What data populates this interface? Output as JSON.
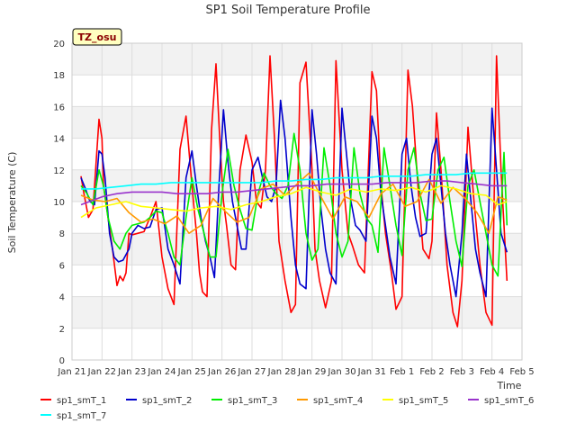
{
  "chart_data": {
    "type": "line",
    "title": "SP1 Soil Temperature Profile",
    "xlabel": "Time",
    "ylabel": "Soil Temperature (C)",
    "badge": "TZ_osu",
    "ylim": [
      0,
      20
    ],
    "yticks": [
      0,
      2,
      4,
      6,
      8,
      10,
      12,
      14,
      16,
      18,
      20
    ],
    "xlim": [
      0,
      15
    ],
    "xtick_labels": [
      "Jan 21",
      "Jan 22",
      "Jan 23",
      "Jan 24",
      "Jan 25",
      "Jan 26",
      "Jan 27",
      "Jan 28",
      "Jan 29",
      "Jan 30",
      "Jan 31",
      "Feb 1",
      "Feb 2",
      "Feb 3",
      "Feb 4",
      "Feb 5"
    ],
    "grid": true,
    "legend_position": "bottom",
    "series": [
      {
        "name": "sp1_smT_1",
        "color": "#ff0000",
        "x": [
          0.3,
          0.4,
          0.55,
          0.7,
          0.9,
          1.0,
          1.05,
          1.2,
          1.35,
          1.5,
          1.6,
          1.7,
          1.8,
          1.9,
          2.0,
          2.2,
          2.4,
          2.6,
          2.8,
          3.0,
          3.2,
          3.4,
          3.6,
          3.8,
          4.0,
          4.15,
          4.25,
          4.35,
          4.5,
          4.65,
          4.8,
          4.95,
          5.05,
          5.15,
          5.3,
          5.45,
          5.6,
          5.8,
          6.0,
          6.15,
          6.3,
          6.45,
          6.6,
          6.75,
          6.9,
          7.1,
          7.3,
          7.45,
          7.6,
          7.8,
          8.0,
          8.1,
          8.25,
          8.45,
          8.65,
          8.8,
          9.0,
          9.2,
          9.35,
          9.55,
          9.75,
          10.0,
          10.15,
          10.3,
          10.45,
          10.65,
          10.8,
          11.0,
          11.2,
          11.35,
          11.55,
          11.7,
          11.9,
          12.0,
          12.15,
          12.3,
          12.5,
          12.7,
          12.85,
          13.0,
          13.2,
          13.4,
          13.6,
          13.8,
          14.0,
          14.15,
          14.3,
          14.5
        ],
        "values": [
          11.6,
          10.5,
          9.0,
          9.5,
          15.2,
          14.0,
          11.0,
          9.0,
          7.0,
          4.7,
          5.3,
          5.0,
          5.5,
          8.0,
          7.9,
          8.0,
          8.1,
          9.0,
          10.0,
          6.5,
          4.5,
          3.5,
          13.3,
          15.4,
          11.0,
          8.0,
          5.5,
          4.3,
          4.0,
          14.5,
          18.7,
          13.0,
          10.0,
          8.5,
          6.0,
          5.7,
          12.0,
          14.2,
          12.5,
          10.0,
          9.6,
          12.0,
          19.2,
          14.0,
          7.5,
          5.0,
          3.0,
          3.5,
          17.5,
          18.8,
          12.0,
          7.0,
          5.0,
          3.3,
          5.0,
          18.9,
          12.0,
          8.0,
          7.2,
          6.0,
          5.5,
          18.2,
          17.0,
          11.0,
          8.0,
          5.5,
          3.2,
          4.0,
          18.3,
          16.0,
          10.5,
          7.0,
          6.4,
          7.5,
          15.6,
          12.0,
          6.0,
          3.0,
          2.1,
          5.0,
          14.7,
          10.0,
          6.0,
          3.0,
          2.2,
          19.2,
          12.0,
          5.0
        ]
      },
      {
        "name": "sp1_smT_2",
        "color": "#0000cc",
        "x": [
          0.3,
          0.45,
          0.6,
          0.75,
          0.9,
          1.0,
          1.1,
          1.25,
          1.4,
          1.55,
          1.7,
          1.9,
          2.0,
          2.2,
          2.4,
          2.6,
          2.8,
          3.0,
          3.2,
          3.4,
          3.6,
          3.8,
          4.0,
          4.15,
          4.3,
          4.45,
          4.6,
          4.75,
          4.9,
          5.05,
          5.2,
          5.35,
          5.5,
          5.65,
          5.8,
          6.0,
          6.2,
          6.35,
          6.5,
          6.65,
          6.8,
          6.95,
          7.1,
          7.3,
          7.45,
          7.6,
          7.8,
          8.0,
          8.15,
          8.3,
          8.45,
          8.6,
          8.8,
          9.0,
          9.15,
          9.3,
          9.45,
          9.6,
          9.8,
          10.0,
          10.15,
          10.3,
          10.45,
          10.6,
          10.8,
          11.0,
          11.15,
          11.3,
          11.45,
          11.6,
          11.8,
          12.0,
          12.15,
          12.3,
          12.45,
          12.6,
          12.8,
          13.0,
          13.15,
          13.3,
          13.45,
          13.6,
          13.8,
          14.0,
          14.15,
          14.3,
          14.5
        ],
        "values": [
          11.5,
          10.8,
          10.0,
          9.8,
          13.2,
          13.0,
          11.5,
          8.0,
          6.5,
          6.2,
          6.3,
          7.0,
          8.0,
          8.5,
          8.3,
          8.4,
          9.5,
          9.6,
          7.0,
          6.0,
          4.8,
          11.5,
          13.2,
          11.0,
          9.0,
          7.5,
          6.5,
          5.2,
          11.0,
          15.8,
          12.5,
          10.0,
          8.5,
          7.0,
          7.0,
          12.0,
          12.8,
          11.5,
          10.3,
          10.0,
          11.0,
          16.4,
          14.0,
          9.0,
          6.0,
          4.8,
          4.5,
          15.8,
          13.0,
          9.5,
          7.0,
          5.5,
          4.8,
          15.9,
          13.0,
          10.0,
          8.5,
          8.2,
          7.5,
          15.4,
          14.0,
          10.5,
          8.5,
          6.5,
          4.8,
          13.0,
          14.0,
          11.0,
          9.0,
          7.8,
          8.0,
          13.0,
          14.0,
          11.0,
          8.0,
          6.0,
          4.0,
          8.0,
          13.0,
          10.0,
          7.0,
          5.5,
          4.0,
          15.9,
          12.0,
          8.0,
          6.8
        ]
      },
      {
        "name": "sp1_smT_3",
        "color": "#00ee00",
        "x": [
          0.3,
          0.5,
          0.7,
          0.9,
          1.05,
          1.2,
          1.4,
          1.6,
          1.8,
          2.0,
          2.2,
          2.4,
          2.6,
          2.8,
          3.0,
          3.2,
          3.4,
          3.6,
          3.8,
          4.0,
          4.2,
          4.4,
          4.6,
          4.8,
          5.0,
          5.2,
          5.4,
          5.6,
          5.8,
          6.0,
          6.2,
          6.4,
          6.6,
          6.8,
          7.0,
          7.2,
          7.4,
          7.6,
          7.8,
          8.0,
          8.2,
          8.4,
          8.6,
          8.8,
          9.0,
          9.2,
          9.4,
          9.6,
          9.8,
          10.0,
          10.2,
          10.4,
          10.6,
          10.8,
          11.0,
          11.2,
          11.4,
          11.6,
          11.8,
          12.0,
          12.2,
          12.4,
          12.6,
          12.8,
          13.0,
          13.2,
          13.4,
          13.6,
          13.8,
          14.0,
          14.2,
          14.4,
          14.5
        ],
        "values": [
          11.0,
          10.5,
          9.8,
          12.0,
          11.0,
          9.0,
          7.5,
          7.0,
          8.0,
          8.5,
          8.6,
          8.7,
          9.0,
          9.4,
          9.3,
          8.0,
          6.5,
          6.0,
          9.0,
          11.5,
          9.5,
          8.0,
          6.5,
          6.5,
          10.5,
          13.3,
          11.0,
          9.5,
          8.3,
          8.2,
          10.5,
          11.8,
          11.0,
          10.5,
          10.2,
          11.0,
          14.3,
          12.0,
          8.0,
          6.3,
          7.0,
          13.4,
          11.0,
          8.0,
          6.5,
          7.5,
          13.4,
          10.5,
          9.0,
          8.5,
          6.8,
          13.4,
          11.0,
          8.5,
          6.6,
          12.0,
          13.4,
          10.5,
          8.8,
          8.9,
          12.0,
          12.8,
          10.0,
          7.5,
          5.9,
          11.0,
          12.0,
          10.0,
          8.0,
          6.0,
          5.3,
          13.1,
          8.5
        ]
      },
      {
        "name": "sp1_smT_4",
        "color": "#ff9900",
        "x": [
          0.3,
          0.7,
          1.1,
          1.5,
          1.9,
          2.3,
          2.7,
          3.1,
          3.5,
          3.9,
          4.3,
          4.7,
          5.1,
          5.5,
          5.9,
          6.3,
          6.7,
          7.1,
          7.5,
          7.9,
          8.3,
          8.7,
          9.1,
          9.5,
          9.9,
          10.3,
          10.7,
          11.1,
          11.5,
          11.9,
          12.3,
          12.7,
          13.1,
          13.5,
          13.9,
          14.2,
          14.5
        ],
        "values": [
          10.4,
          10.1,
          10.0,
          10.2,
          9.3,
          8.7,
          8.9,
          8.6,
          9.1,
          8.0,
          8.5,
          10.2,
          9.4,
          8.7,
          9.0,
          10.8,
          11.1,
          10.4,
          11.1,
          11.8,
          10.3,
          8.9,
          10.3,
          10.0,
          9.0,
          10.5,
          11.1,
          9.7,
          10.0,
          11.4,
          9.9,
          10.9,
          10.2,
          9.3,
          8.0,
          10.3,
          10.1
        ]
      },
      {
        "name": "sp1_smT_5",
        "color": "#ffff00",
        "x": [
          0.3,
          0.8,
          1.3,
          1.8,
          2.3,
          2.8,
          3.3,
          3.8,
          4.3,
          4.8,
          5.3,
          5.8,
          6.3,
          6.8,
          7.3,
          7.8,
          8.3,
          8.8,
          9.3,
          9.8,
          10.3,
          10.8,
          11.3,
          11.8,
          12.3,
          12.8,
          13.3,
          13.8,
          14.2,
          14.5
        ],
        "values": [
          9.0,
          9.6,
          9.8,
          10.0,
          9.7,
          9.6,
          9.5,
          9.4,
          9.6,
          9.7,
          9.5,
          9.8,
          10.0,
          10.3,
          10.5,
          10.9,
          10.6,
          10.4,
          10.8,
          10.6,
          10.8,
          10.7,
          10.9,
          10.6,
          11.0,
          10.8,
          10.5,
          10.4,
          9.8,
          10.0
        ]
      },
      {
        "name": "sp1_smT_6",
        "color": "#9933cc",
        "x": [
          0.3,
          1.0,
          1.5,
          2.0,
          2.5,
          3.0,
          3.5,
          4.0,
          4.5,
          5.0,
          5.5,
          6.0,
          6.5,
          7.0,
          7.5,
          8.0,
          8.5,
          9.0,
          9.5,
          10.0,
          10.5,
          11.0,
          11.5,
          12.0,
          12.5,
          13.0,
          13.5,
          14.0,
          14.5
        ],
        "values": [
          9.8,
          10.3,
          10.5,
          10.6,
          10.6,
          10.6,
          10.5,
          10.5,
          10.5,
          10.6,
          10.6,
          10.7,
          10.8,
          10.9,
          11.0,
          11.0,
          11.1,
          11.1,
          11.1,
          11.1,
          11.2,
          11.2,
          11.2,
          11.3,
          11.3,
          11.2,
          11.1,
          11.0,
          11.0
        ]
      },
      {
        "name": "sp1_smT_7",
        "color": "#00ffff",
        "x": [
          0.3,
          0.8,
          1.3,
          1.8,
          2.3,
          2.8,
          3.3,
          3.8,
          4.3,
          4.8,
          5.3,
          5.8,
          6.3,
          6.8,
          7.3,
          7.8,
          8.3,
          8.8,
          9.3,
          9.8,
          10.3,
          10.8,
          11.3,
          11.8,
          12.3,
          12.8,
          13.3,
          13.8,
          14.2,
          14.5
        ],
        "values": [
          10.8,
          10.8,
          10.9,
          11.0,
          11.1,
          11.1,
          11.2,
          11.2,
          11.2,
          11.2,
          11.2,
          11.2,
          11.2,
          11.3,
          11.3,
          11.4,
          11.4,
          11.5,
          11.5,
          11.5,
          11.6,
          11.6,
          11.6,
          11.7,
          11.7,
          11.7,
          11.8,
          11.8,
          11.8,
          11.8
        ]
      }
    ]
  }
}
